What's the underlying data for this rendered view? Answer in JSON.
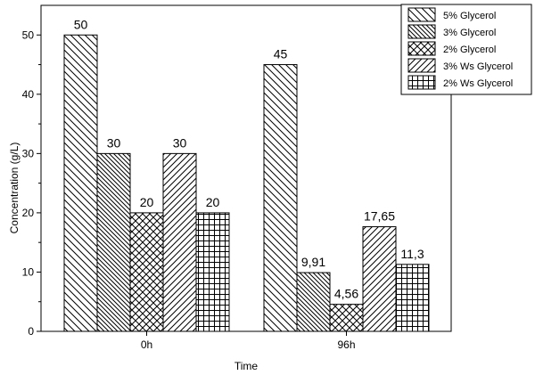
{
  "chart_data": {
    "type": "bar",
    "categories": [
      "0h",
      "96h"
    ],
    "series": [
      {
        "name": "5% Glycerol",
        "values": [
          50,
          45
        ],
        "labels": [
          "50",
          "45"
        ],
        "pattern": "diag-down"
      },
      {
        "name": "3% Glycerol",
        "values": [
          30,
          9.91
        ],
        "labels": [
          "30",
          "9,91"
        ],
        "pattern": "diag-down-dense"
      },
      {
        "name": "2% Glycerol",
        "values": [
          20,
          4.56
        ],
        "labels": [
          "20",
          "4,56"
        ],
        "pattern": "crosshatch"
      },
      {
        "name": "3% Ws Glycerol",
        "values": [
          30,
          17.65
        ],
        "labels": [
          "30",
          "17,65"
        ],
        "pattern": "diag-up"
      },
      {
        "name": "2% Ws Glycerol",
        "values": [
          20,
          11.3
        ],
        "labels": [
          "20",
          "11,3"
        ],
        "pattern": "grid"
      }
    ],
    "xlabel": "Time",
    "ylabel": "Concentration (g/L)",
    "ylim": [
      0,
      55
    ],
    "yticks": [
      0,
      10,
      20,
      30,
      40,
      50
    ],
    "legend_position": "top-right",
    "grid": false,
    "colors": {
      "bar_fill": "#ffffff",
      "stroke": "#000000"
    }
  }
}
